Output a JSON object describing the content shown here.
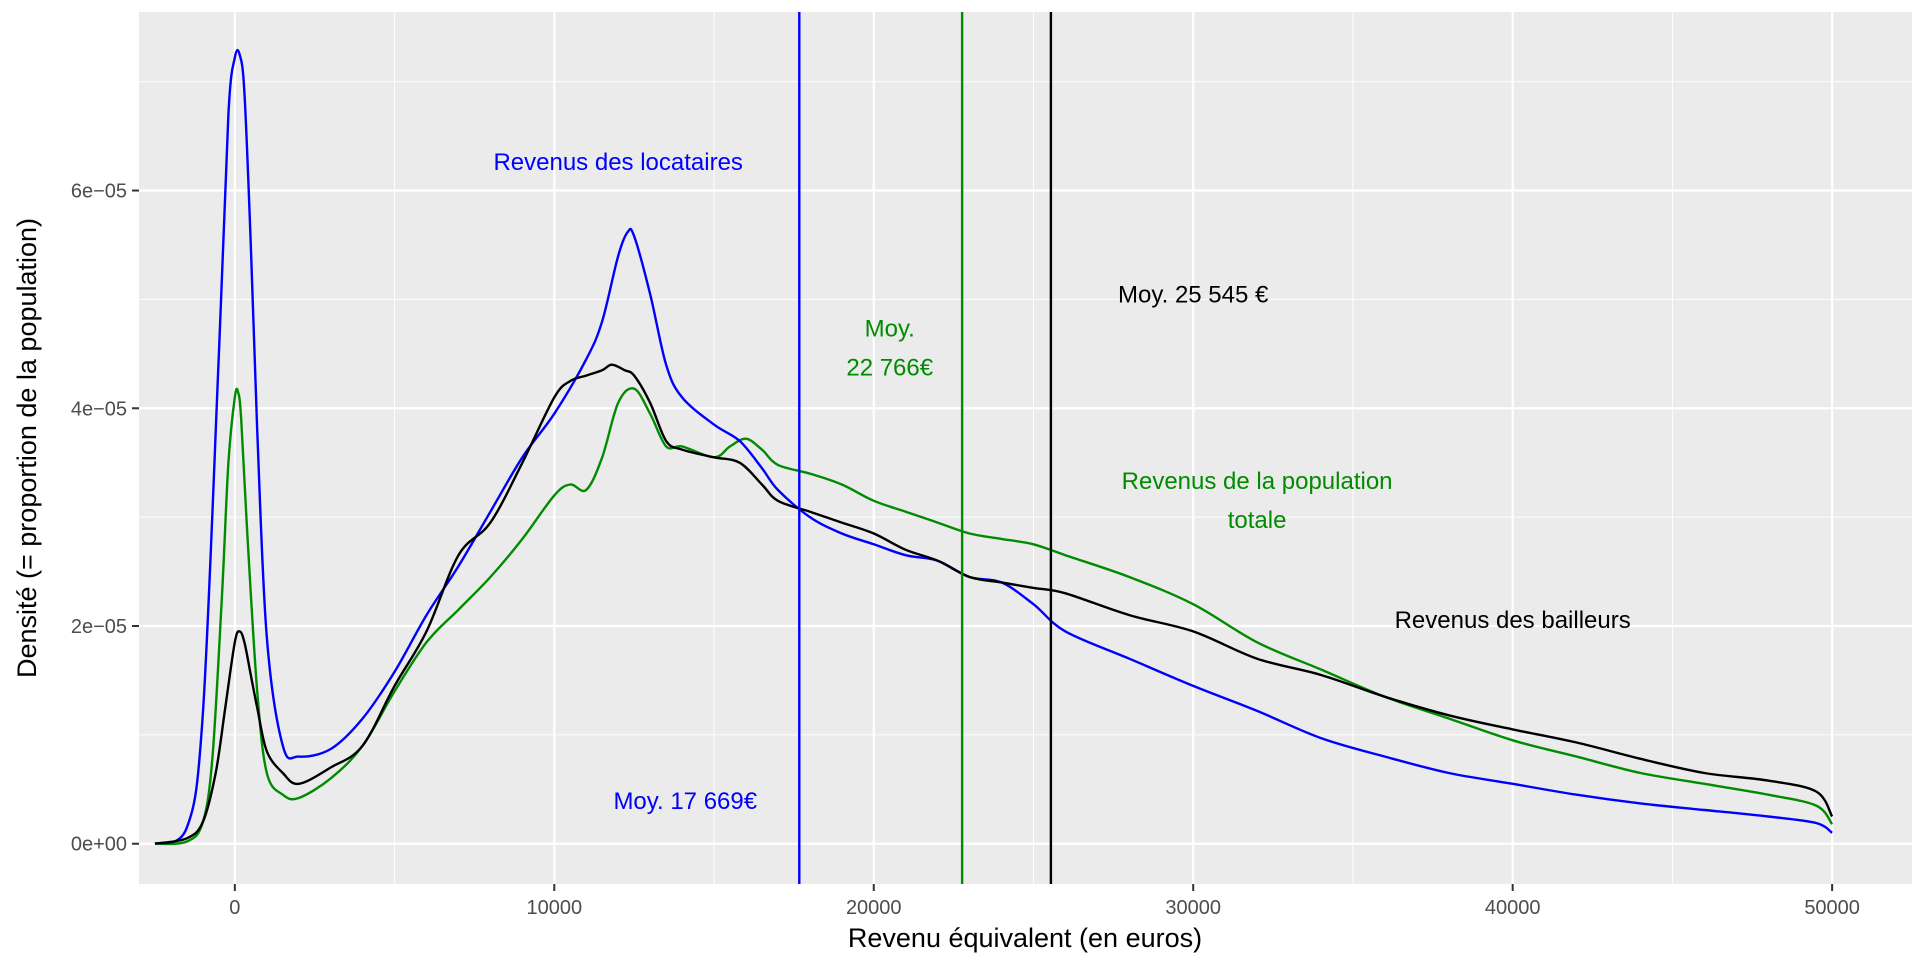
{
  "chart_data": {
    "type": "line",
    "xlabel": "Revenu équivalent (en euros)",
    "ylabel": "Densité (= proportion de la population)",
    "xlim": [
      -3000,
      52500
    ],
    "ylim": [
      -3.7e-06,
      7.64e-05
    ],
    "x_ticks": [
      {
        "value": 0,
        "label": "0"
      },
      {
        "value": 10000,
        "label": "10000"
      },
      {
        "value": 20000,
        "label": "20000"
      },
      {
        "value": 30000,
        "label": "30000"
      },
      {
        "value": 40000,
        "label": "40000"
      },
      {
        "value": 50000,
        "label": "50000"
      }
    ],
    "y_ticks": [
      {
        "value": 0,
        "label": "0e+00"
      },
      {
        "value": 2e-05,
        "label": "2e−05"
      },
      {
        "value": 4e-05,
        "label": "4e−05"
      },
      {
        "value": 6e-05,
        "label": "6e−05"
      }
    ],
    "grid": true,
    "background": "#ebebeb",
    "series": [
      {
        "color": "#0000ff",
        "x": [
          -2500,
          -1500,
          -1000,
          -500,
          -200,
          0,
          150,
          300,
          500,
          700,
          1000,
          1500,
          2000,
          3000,
          4000,
          5000,
          6000,
          7000,
          8000,
          9000,
          10000,
          11000,
          11500,
          12000,
          12300,
          12500,
          13000,
          13500,
          14000,
          15000,
          15800,
          16500,
          17000,
          18000,
          19000,
          20000,
          21000,
          22000,
          23000,
          24000,
          25000,
          26000,
          28000,
          30000,
          32000,
          34000,
          36000,
          38000,
          40000,
          42000,
          44000,
          46000,
          48000,
          49500,
          50000
        ],
        "y": [
          0,
          1.5e-06,
          1.2e-05,
          4.5e-05,
          6.7e-05,
          7.22e-05,
          7.25e-05,
          6.9e-05,
          5.5e-05,
          3.8e-05,
          1.9e-05,
          9e-06,
          8e-06,
          8.7e-06,
          1.15e-05,
          1.58e-05,
          2.1e-05,
          2.55e-05,
          3.05e-05,
          3.55e-05,
          3.95e-05,
          4.45e-05,
          4.8e-05,
          5.4e-05,
          5.62e-05,
          5.58e-05,
          5.05e-05,
          4.4e-05,
          4.1e-05,
          3.85e-05,
          3.7e-05,
          3.45e-05,
          3.25e-05,
          3e-05,
          2.85e-05,
          2.75e-05,
          2.65e-05,
          2.6e-05,
          2.45e-05,
          2.4e-05,
          2.2e-05,
          1.95e-05,
          1.7e-05,
          1.45e-05,
          1.22e-05,
          9.7e-06,
          8e-06,
          6.5e-06,
          5.5e-06,
          4.5e-06,
          3.7e-06,
          3.1e-06,
          2.5e-06,
          1.9e-06,
          1e-06
        ]
      },
      {
        "color": "#008b00",
        "x": [
          -2500,
          -1500,
          -1000,
          -700,
          -400,
          -200,
          0,
          100,
          200,
          400,
          700,
          1000,
          1500,
          2000,
          3000,
          4000,
          5000,
          6000,
          7000,
          8000,
          9000,
          10000,
          10500,
          11000,
          11500,
          12000,
          12500,
          13000,
          13500,
          14000,
          15000,
          15500,
          16000,
          16500,
          17000,
          18000,
          19000,
          20000,
          21000,
          22000,
          23000,
          24000,
          25000,
          26000,
          28000,
          30000,
          32000,
          34000,
          36000,
          38000,
          40000,
          42000,
          44000,
          46000,
          48000,
          49500,
          50000
        ],
        "y": [
          0,
          2e-07,
          2e-06,
          8e-06,
          2.3e-05,
          3.5e-05,
          4.1e-05,
          4.15e-05,
          3.9e-05,
          2.8e-05,
          1.4e-05,
          6.5e-06,
          4.5e-06,
          4.2e-06,
          6e-06,
          9e-06,
          1.4e-05,
          1.85e-05,
          2.15e-05,
          2.45e-05,
          2.8e-05,
          3.2e-05,
          3.3e-05,
          3.25e-05,
          3.55e-05,
          4.05e-05,
          4.18e-05,
          3.95e-05,
          3.65e-05,
          3.65e-05,
          3.55e-05,
          3.65e-05,
          3.72e-05,
          3.62e-05,
          3.48e-05,
          3.4e-05,
          3.3e-05,
          3.15e-05,
          3.05e-05,
          2.95e-05,
          2.85e-05,
          2.8e-05,
          2.75e-05,
          2.65e-05,
          2.45e-05,
          2.2e-05,
          1.85e-05,
          1.6e-05,
          1.35e-05,
          1.15e-05,
          9.5e-06,
          8e-06,
          6.5e-06,
          5.5e-06,
          4.5e-06,
          3.5e-06,
          1.8e-06
        ]
      },
      {
        "color": "#000000",
        "x": [
          -2500,
          -1500,
          -1000,
          -600,
          -300,
          0,
          150,
          300,
          500,
          700,
          1000,
          1500,
          2000,
          3000,
          4000,
          5000,
          6000,
          7000,
          8000,
          9000,
          10000,
          10500,
          11000,
          11500,
          11800,
          12200,
          12500,
          13000,
          13500,
          14000,
          15000,
          15800,
          16500,
          17000,
          18000,
          19000,
          20000,
          21000,
          22000,
          23000,
          24000,
          25000,
          26000,
          28000,
          30000,
          32000,
          34000,
          36000,
          38000,
          40000,
          42000,
          44000,
          46000,
          48000,
          49500,
          50000
        ],
        "y": [
          0,
          5e-07,
          2e-06,
          6.5e-06,
          1.25e-05,
          1.85e-05,
          1.95e-05,
          1.85e-05,
          1.55e-05,
          1.25e-05,
          8.5e-06,
          6.5e-06,
          5.5e-06,
          7e-06,
          9e-06,
          1.45e-05,
          1.95e-05,
          2.65e-05,
          2.95e-05,
          3.5e-05,
          4.1e-05,
          4.25e-05,
          4.3e-05,
          4.35e-05,
          4.4e-05,
          4.35e-05,
          4.3e-05,
          4.05e-05,
          3.7e-05,
          3.62e-05,
          3.55e-05,
          3.5e-05,
          3.3e-05,
          3.15e-05,
          3.05e-05,
          2.95e-05,
          2.85e-05,
          2.7e-05,
          2.6e-05,
          2.45e-05,
          2.4e-05,
          2.35e-05,
          2.3e-05,
          2.1e-05,
          1.95e-05,
          1.7e-05,
          1.55e-05,
          1.35e-05,
          1.18e-05,
          1.05e-05,
          9.3e-06,
          7.8e-06,
          6.5e-06,
          5.8e-06,
          4.8e-06,
          2.5e-06
        ]
      }
    ],
    "vlines": [
      {
        "x": 17669,
        "color": "#0000ff"
      },
      {
        "x": 22766,
        "color": "#008b00"
      },
      {
        "x": 25545,
        "color": "#000000"
      }
    ],
    "annotations": [
      {
        "id": "annot-locataires",
        "x": 12000,
        "y": 6.19e-05,
        "lines": [
          "Revenus des locataires"
        ],
        "color": "#0000ff"
      },
      {
        "id": "annot-moy-locataires",
        "x": 14100,
        "y": 3.2e-06,
        "lines": [
          "Moy. 17 669€"
        ],
        "color": "#0000ff"
      },
      {
        "id": "annot-moy-population",
        "x": 20500,
        "y": 4.66e-05,
        "lines": [
          "Moy.",
          "22 766€"
        ],
        "color": "#008b00"
      },
      {
        "id": "annot-moy-bailleurs",
        "x": 30000,
        "y": 4.97e-05,
        "lines": [
          "Moy. 25 545 €"
        ],
        "color": "#000000"
      },
      {
        "id": "annot-population",
        "x": 32000,
        "y": 3.26e-05,
        "lines": [
          "Revenus de la population",
          "totale"
        ],
        "color": "#008b00"
      },
      {
        "id": "annot-bailleurs",
        "x": 40000,
        "y": 1.98e-05,
        "lines": [
          "Revenus des bailleurs"
        ],
        "color": "#000000"
      }
    ]
  }
}
